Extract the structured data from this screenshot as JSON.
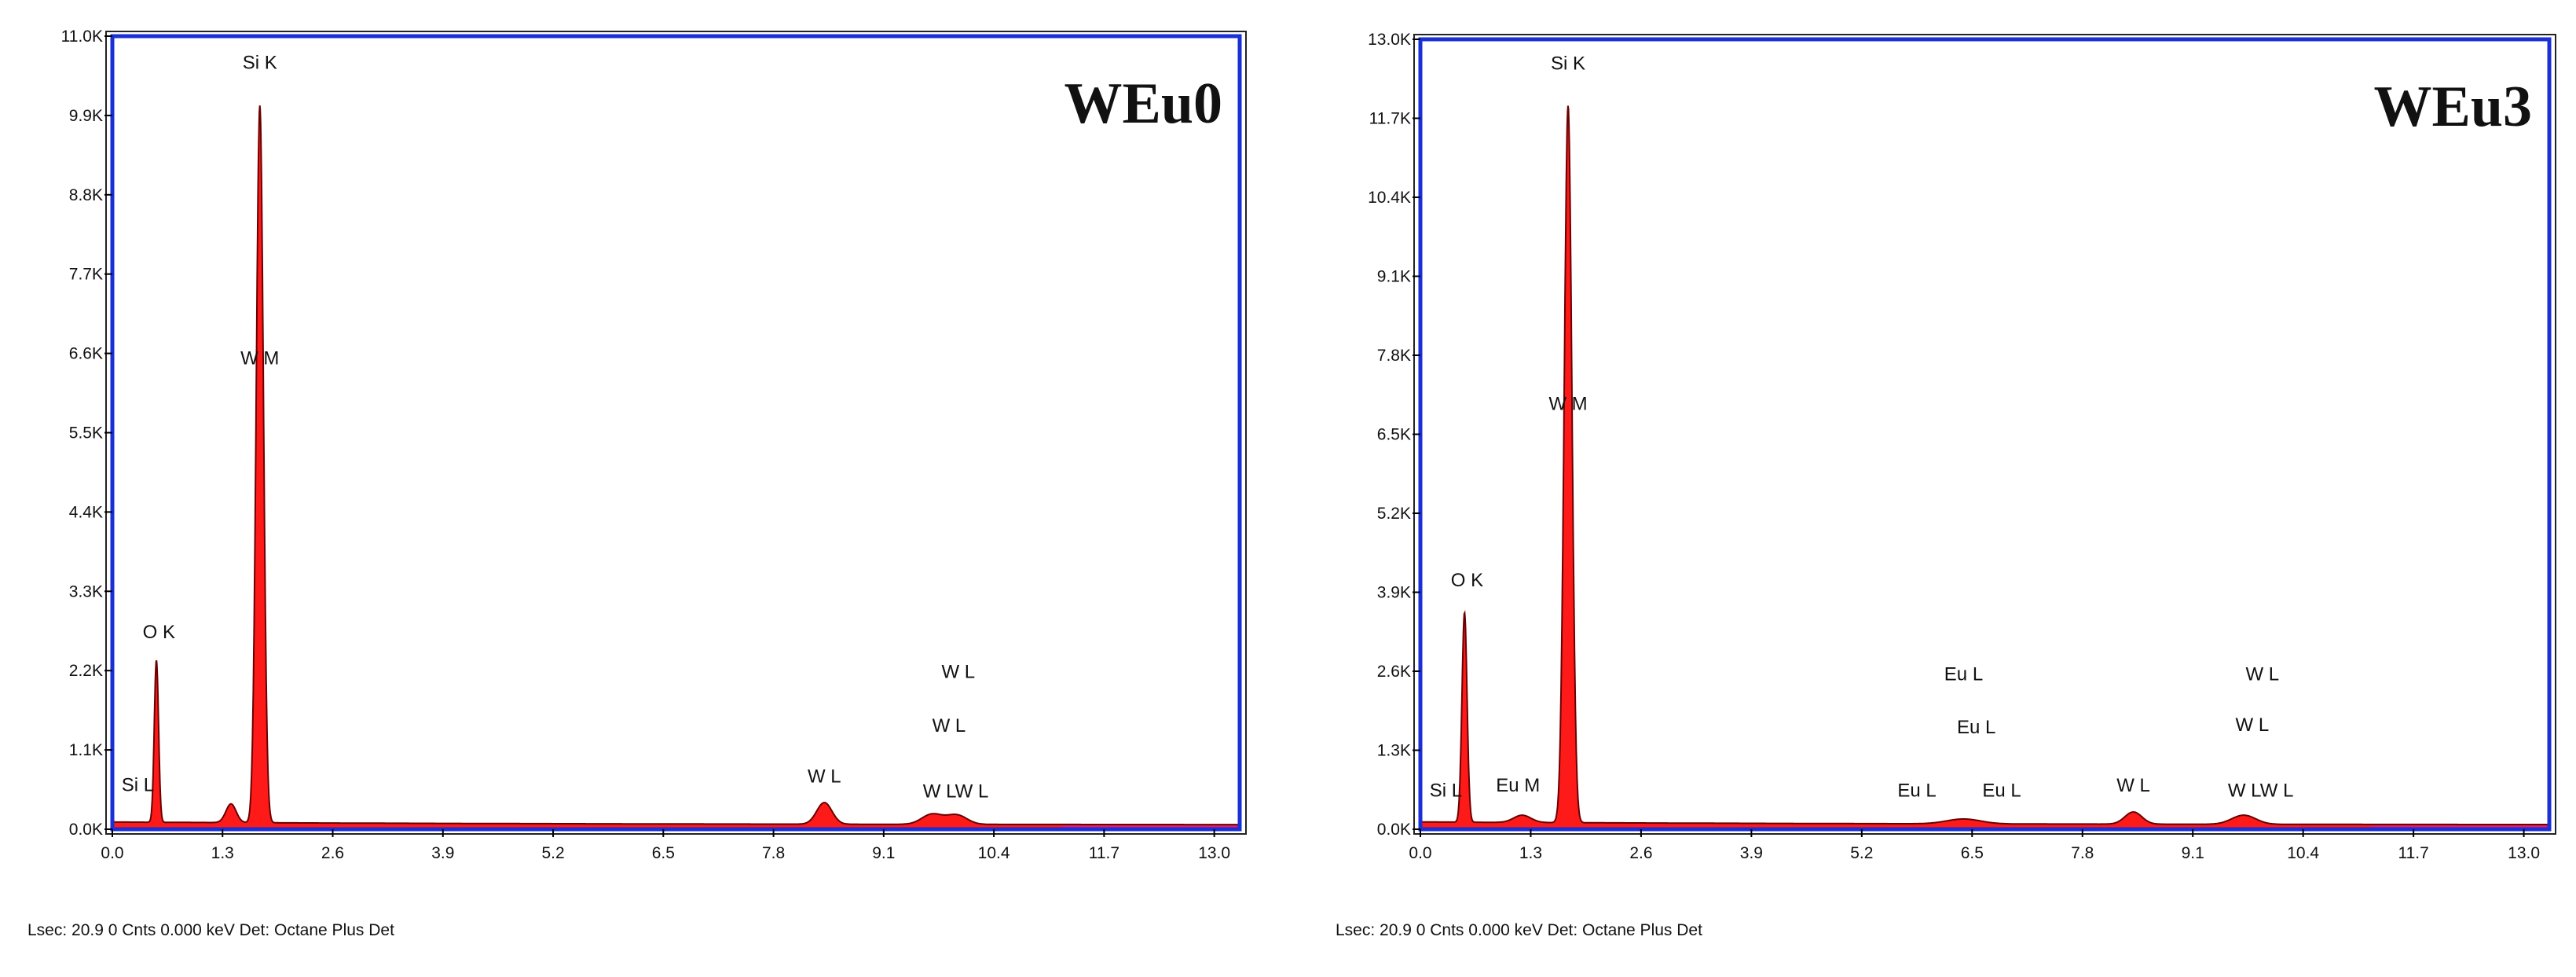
{
  "colors": {
    "frame": "#1a2fd6",
    "fill": "#ff1a1a",
    "edge": "#6b0000",
    "tail": "#c020c0",
    "axis": "#000000"
  },
  "chart_data": [
    {
      "type": "area",
      "title": "WEu0",
      "xlim": [
        0.0,
        13.3
      ],
      "ylim": [
        0,
        11000
      ],
      "x_ticks": [
        "0.0",
        "1.3",
        "2.6",
        "3.9",
        "5.2",
        "6.5",
        "7.8",
        "9.1",
        "10.4",
        "11.7",
        "13.0"
      ],
      "y_ticks": [
        "0.0K",
        "1.1K",
        "2.2K",
        "3.3K",
        "4.4K",
        "5.5K",
        "6.6K",
        "7.7K",
        "8.8K",
        "9.9K",
        "11.0K"
      ],
      "y_tick_values": [
        0,
        1100,
        2200,
        3300,
        4400,
        5500,
        6600,
        7700,
        8800,
        9900,
        11000
      ],
      "spectrum": {
        "baseline": 100,
        "peaks": [
          {
            "x": 0.52,
            "y": 2250,
            "w": 0.025
          },
          {
            "x": 1.74,
            "y": 9950,
            "w": 0.042
          },
          {
            "x": 1.4,
            "y": 260,
            "w": 0.06
          },
          {
            "x": 8.4,
            "y": 300,
            "w": 0.09
          },
          {
            "x": 9.67,
            "y": 140,
            "w": 0.12
          },
          {
            "x": 9.96,
            "y": 130,
            "w": 0.12
          }
        ]
      },
      "peak_labels": [
        {
          "text": "Si K",
          "x": 1.74,
          "y": 10550
        },
        {
          "text": "W  M",
          "x": 1.74,
          "y": 6450
        },
        {
          "text": "O  K",
          "x": 0.55,
          "y": 2650
        },
        {
          "text": "Si L",
          "x": 0.3,
          "y": 530
        },
        {
          "text": "W  L",
          "x": 8.4,
          "y": 650
        },
        {
          "text": "W  L",
          "x": 9.98,
          "y": 2100
        },
        {
          "text": "W  L",
          "x": 9.87,
          "y": 1350
        },
        {
          "text": "W  LW  L",
          "x": 9.95,
          "y": 440
        }
      ],
      "footer": "Lsec: 20.9 0 Cnts  0.000 keV Det: Octane Plus Det"
    },
    {
      "type": "area",
      "title": "WEu3",
      "xlim": [
        0.0,
        13.3
      ],
      "ylim": [
        0,
        13000
      ],
      "x_ticks": [
        "0.0",
        "1.3",
        "2.6",
        "3.9",
        "5.2",
        "6.5",
        "7.8",
        "9.1",
        "10.4",
        "11.7",
        "13.0"
      ],
      "y_ticks": [
        "0.0K",
        "1.3K",
        "2.6K",
        "3.9K",
        "5.2K",
        "6.5K",
        "7.8K",
        "9.1K",
        "10.4K",
        "11.7K",
        "13.0K"
      ],
      "y_tick_values": [
        0,
        1300,
        2600,
        3900,
        5200,
        6500,
        7800,
        9100,
        10400,
        11700,
        13000
      ],
      "spectrum": {
        "baseline": 120,
        "peaks": [
          {
            "x": 0.52,
            "y": 3450,
            "w": 0.03
          },
          {
            "x": 1.74,
            "y": 11800,
            "w": 0.045
          },
          {
            "x": 1.2,
            "y": 120,
            "w": 0.1
          },
          {
            "x": 6.4,
            "y": 80,
            "w": 0.2
          },
          {
            "x": 8.4,
            "y": 200,
            "w": 0.1
          },
          {
            "x": 9.7,
            "y": 150,
            "w": 0.14
          }
        ]
      },
      "peak_labels": [
        {
          "text": "Si K",
          "x": 1.74,
          "y": 12500
        },
        {
          "text": "W  M",
          "x": 1.74,
          "y": 6900
        },
        {
          "text": "O  K",
          "x": 0.55,
          "y": 4000
        },
        {
          "text": "Si L",
          "x": 0.3,
          "y": 540
        },
        {
          "text": "Eu M",
          "x": 1.15,
          "y": 620
        },
        {
          "text": "Eu L",
          "x": 6.4,
          "y": 2450
        },
        {
          "text": "Eu L",
          "x": 6.55,
          "y": 1580
        },
        {
          "text": "Eu L",
          "x": 5.85,
          "y": 540
        },
        {
          "text": "Eu L",
          "x": 6.85,
          "y": 540
        },
        {
          "text": "W  L",
          "x": 8.4,
          "y": 620
        },
        {
          "text": "W  L",
          "x": 9.92,
          "y": 2450
        },
        {
          "text": "W  L",
          "x": 9.8,
          "y": 1620
        },
        {
          "text": "W  LW  L",
          "x": 9.9,
          "y": 540
        }
      ],
      "footer": "Lsec: 20.9 0 Cnts  0.000 keV Det: Octane Plus Det"
    }
  ]
}
